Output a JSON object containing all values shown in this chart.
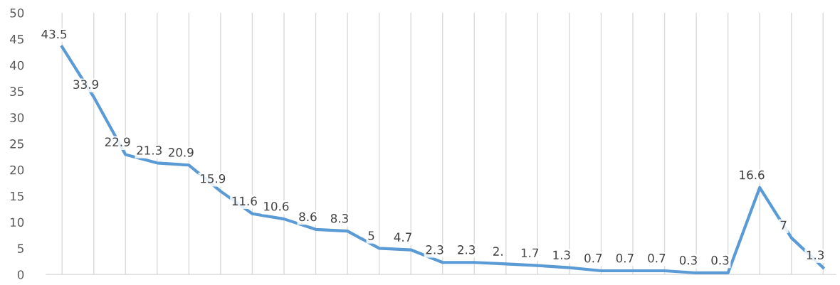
{
  "chart_data": {
    "type": "line",
    "categories": [
      null,
      null,
      null,
      null,
      null,
      null,
      null,
      null,
      null,
      null,
      null,
      null,
      null,
      null,
      null,
      null,
      null,
      null,
      null,
      null,
      null,
      null,
      null,
      null,
      null
    ],
    "series": [
      {
        "color": "#5b9bd5",
        "values": [
          43.5,
          33.9,
          22.9,
          21.3,
          20.9,
          15.9,
          11.6,
          10.6,
          8.6,
          8.3,
          5,
          4.7,
          2.3,
          2.3,
          2,
          1.7,
          1.3,
          0.7,
          0.7,
          0.7,
          0.3,
          0.3,
          16.6,
          7,
          1.3
        ],
        "value_labels": [
          "43.5",
          "33.9",
          "22.9",
          "21.3",
          "20.9",
          "15.9",
          "11.6",
          "10.6",
          "8.6",
          "8.3",
          "5",
          "4.7",
          "2.3",
          "2.3",
          "2.",
          "1.7",
          "1.3",
          "0.7",
          "0.7",
          "0.7",
          "0.3",
          "0.3",
          "16.6",
          "7",
          "1.3"
        ]
      }
    ],
    "ylim": [
      0,
      50
    ],
    "yticks": [
      0,
      5,
      10,
      15,
      20,
      25,
      30,
      35,
      40,
      45,
      50
    ],
    "grid": "x",
    "marker": "none",
    "line_style": "solid"
  }
}
